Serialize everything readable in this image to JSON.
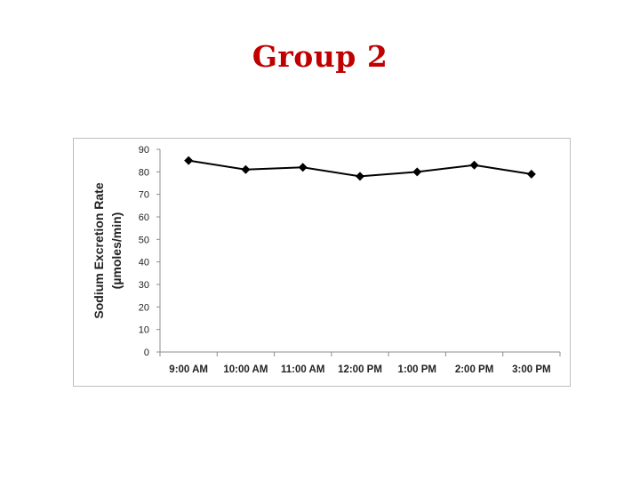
{
  "slide": {
    "title": "Group 2"
  },
  "chart_data": {
    "type": "line",
    "title": "Group 2",
    "xlabel": "",
    "ylabel": "Sodium Excretion Rate",
    "ylabel_units": "(µmoles/min)",
    "categories": [
      "9:00 AM",
      "10:00 AM",
      "11:00 AM",
      "12:00 PM",
      "1:00 PM",
      "2:00 PM",
      "3:00 PM"
    ],
    "series": [
      {
        "values": [
          85,
          81,
          82,
          78,
          80,
          83,
          79
        ],
        "color": "#000000",
        "marker": "diamond"
      }
    ],
    "ylim": [
      0,
      90
    ],
    "yticks": [
      0,
      10,
      20,
      30,
      40,
      50,
      60,
      70,
      80,
      90
    ],
    "grid": false,
    "legend": "none"
  }
}
